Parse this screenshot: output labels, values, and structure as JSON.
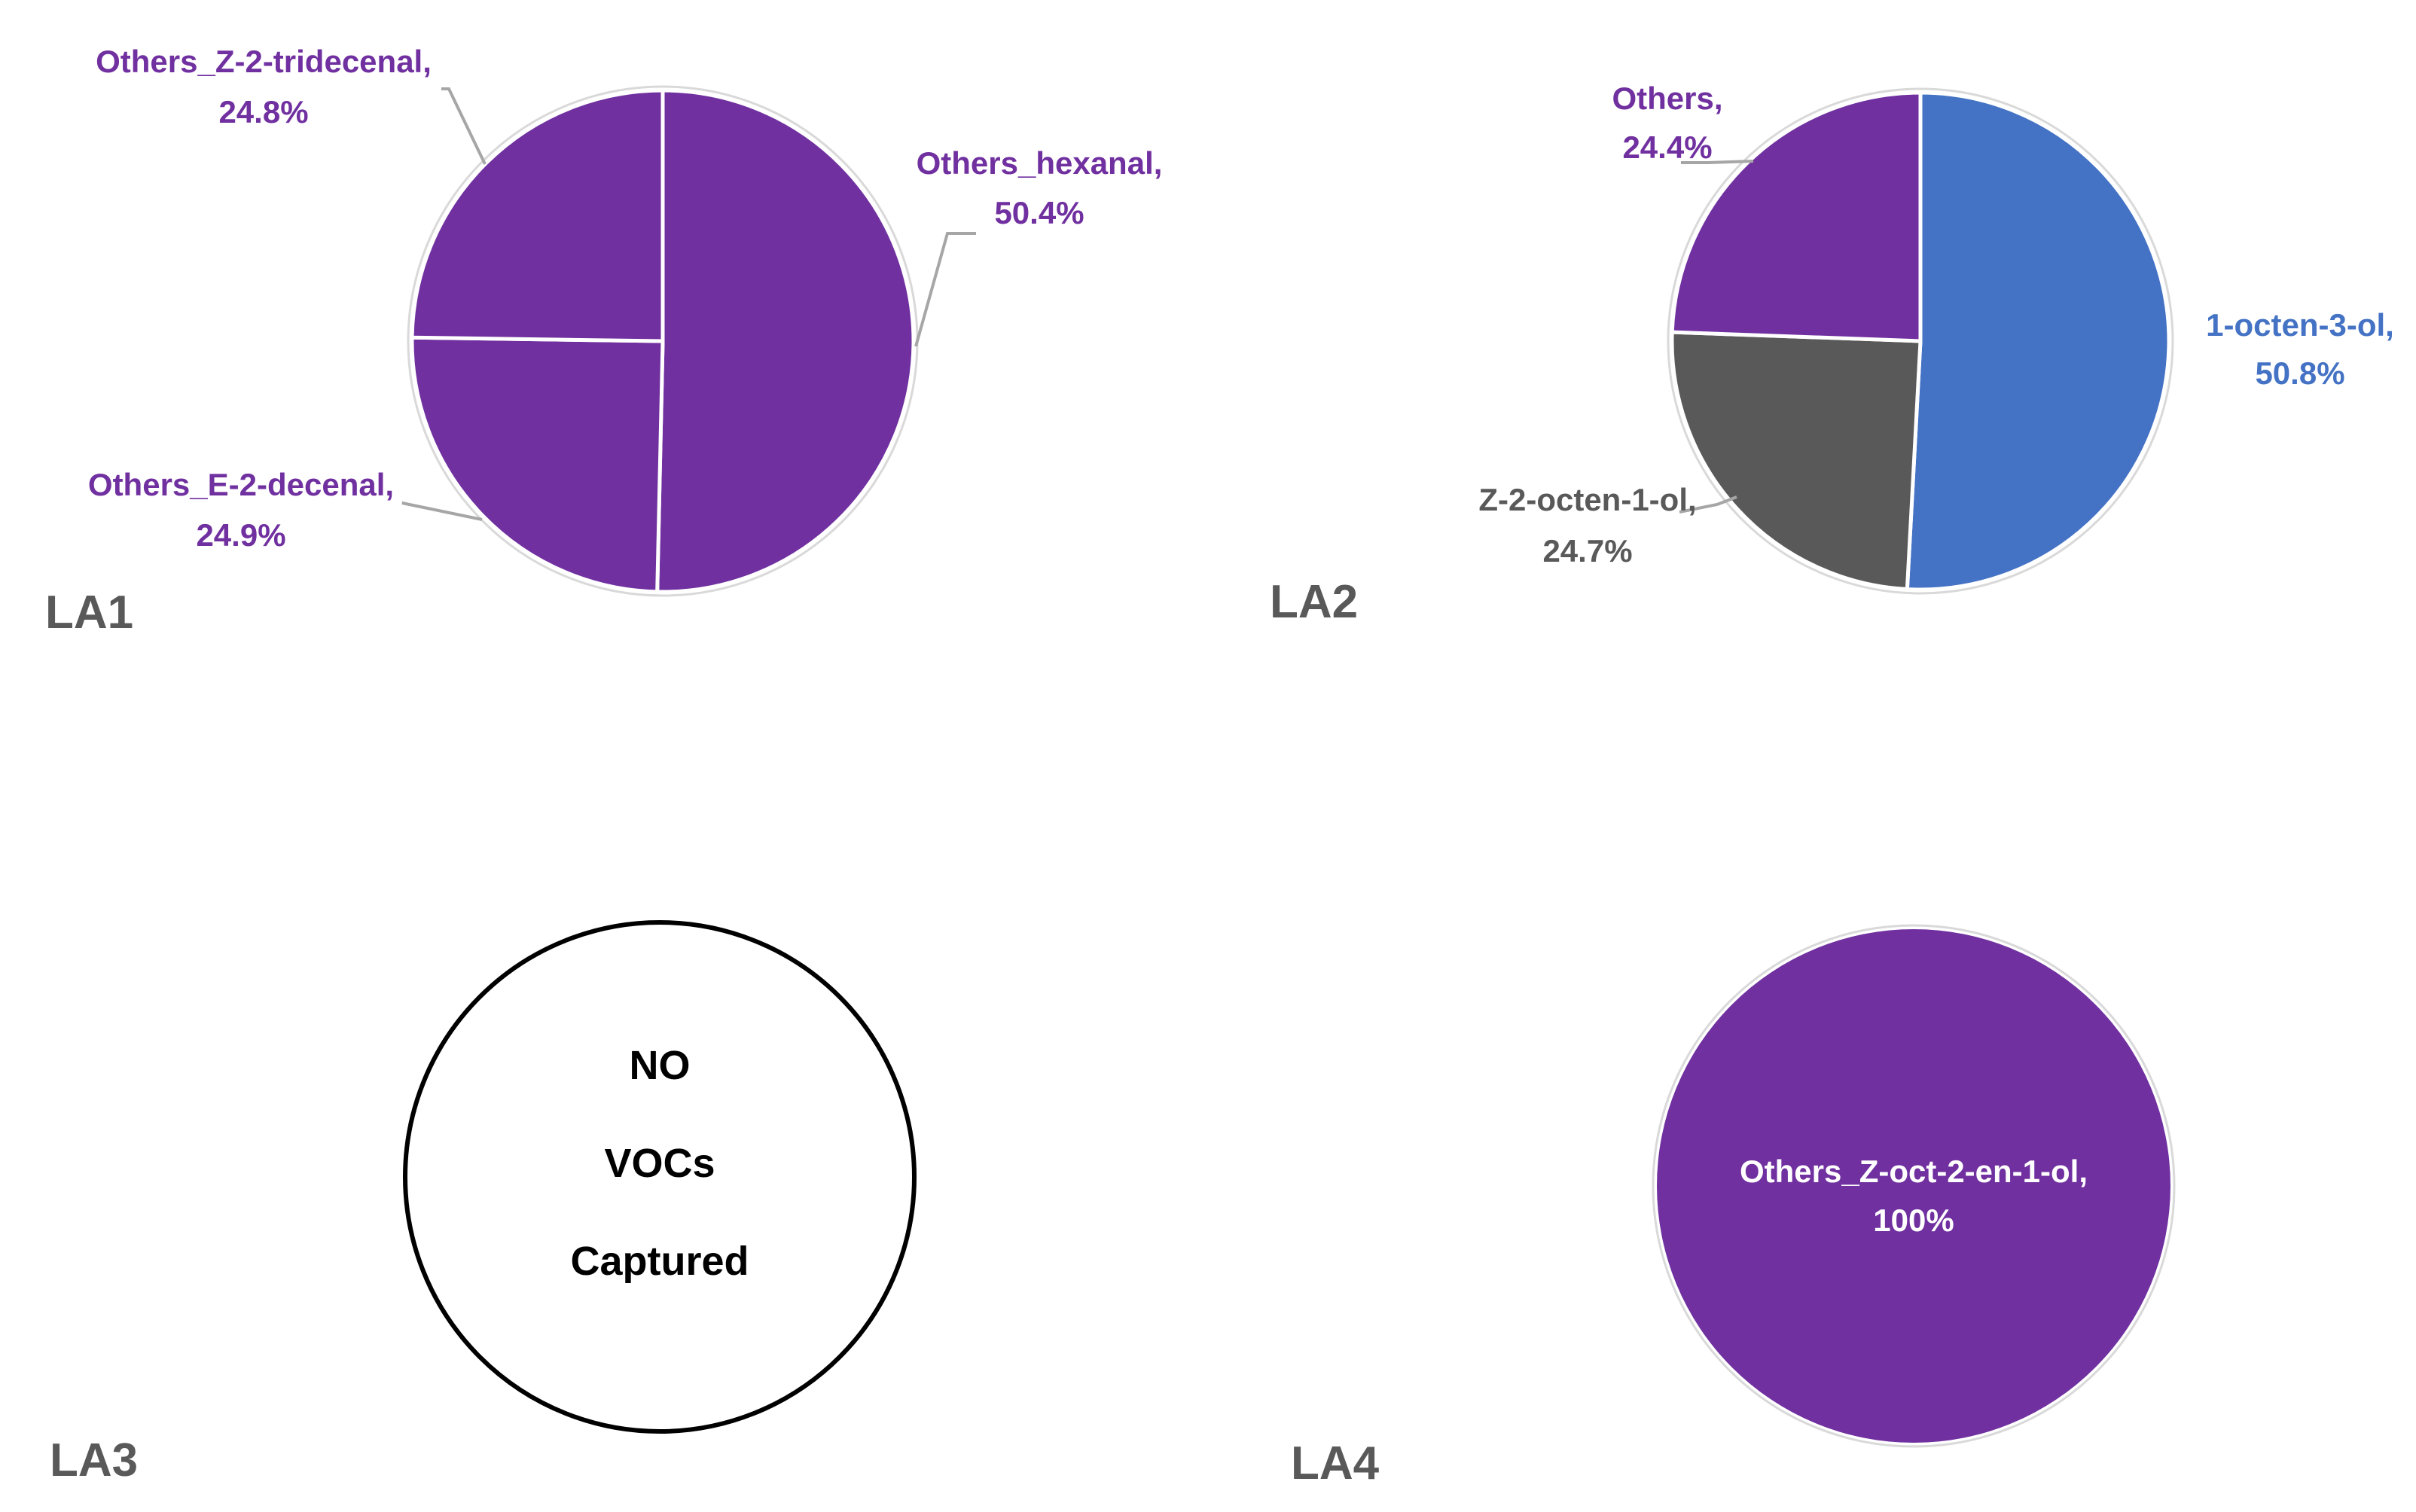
{
  "chart_data": [
    {
      "type": "pie",
      "panel_label": "LA1",
      "slices": [
        {
          "name": "Others_hexanal,",
          "value_label": "50.4%",
          "value": 50.4,
          "color": "#7030A0"
        },
        {
          "name": "Others_E-2-decenal,",
          "value_label": "24.9%",
          "value": 24.9,
          "color": "#7030A0"
        },
        {
          "name": "Others_Z-2-tridecenal,",
          "value_label": "24.8%",
          "value": 24.8,
          "color": "#7030A0"
        }
      ]
    },
    {
      "type": "pie",
      "panel_label": "LA2",
      "slices": [
        {
          "name": "1-octen-3-ol,",
          "value_label": "50.8%",
          "value": 50.8,
          "color": "#4472C4"
        },
        {
          "name": "Z-2-octen-1-ol,",
          "value_label": "24.7%",
          "value": 24.7,
          "color": "#595959"
        },
        {
          "name": "Others,",
          "value_label": "24.4%",
          "value": 24.4,
          "color": "#7030A0"
        }
      ]
    },
    {
      "type": "pie",
      "panel_label": "LA3",
      "slices": [],
      "empty_message": [
        "NO",
        "VOCs",
        "Captured"
      ]
    },
    {
      "type": "pie",
      "panel_label": "LA4",
      "slices": [
        {
          "name": "Others_Z-oct-2-en-1-ol,",
          "value_label": "100%",
          "value": 100,
          "color": "#7030A0"
        }
      ]
    }
  ]
}
